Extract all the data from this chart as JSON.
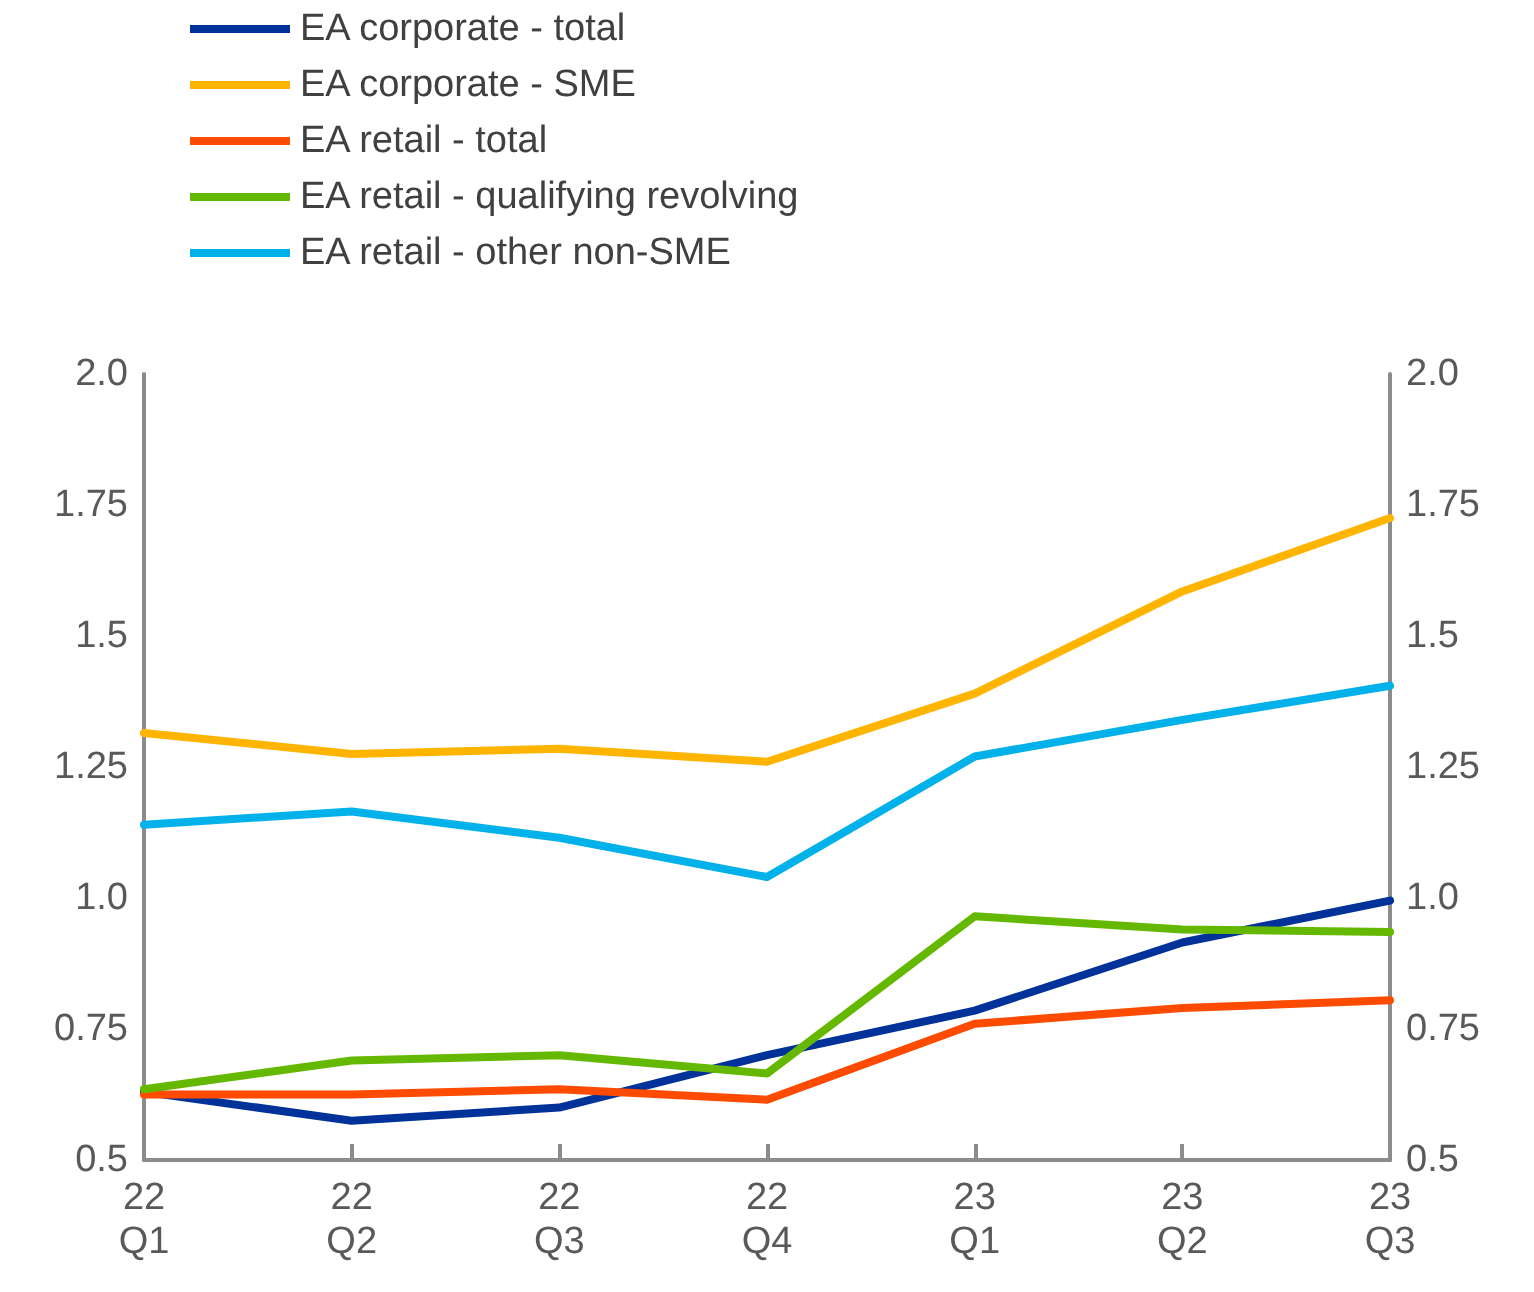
{
  "chart_data": {
    "type": "line",
    "categories": [
      "22\nQ1",
      "22\nQ2",
      "22\nQ3",
      "22\nQ4",
      "23\nQ1",
      "23\nQ2",
      "23\nQ3"
    ],
    "series": [
      {
        "name": "EA corporate - total",
        "color": "#003299",
        "values": [
          0.63,
          0.575,
          0.6,
          0.7,
          0.785,
          0.915,
          0.995
        ]
      },
      {
        "name": "EA corporate - SME",
        "color": "#ffb400",
        "values": [
          1.315,
          1.275,
          1.285,
          1.26,
          1.39,
          1.585,
          1.725
        ]
      },
      {
        "name": "EA retail - total",
        "color": "#ff4b00",
        "values": [
          0.625,
          0.625,
          0.635,
          0.615,
          0.76,
          0.79,
          0.805
        ]
      },
      {
        "name": "EA retail - qualifying revolving",
        "color": "#65b800",
        "values": [
          0.635,
          0.69,
          0.7,
          0.665,
          0.965,
          0.94,
          0.935
        ]
      },
      {
        "name": "EA retail - other non-SME",
        "color": "#00b1ea",
        "values": [
          1.14,
          1.165,
          1.115,
          1.04,
          1.27,
          1.34,
          1.405
        ]
      }
    ],
    "ylim": [
      0.5,
      2.0
    ],
    "yticks": [
      0.5,
      0.75,
      {
        "value": 1,
        "label": "1.0"
      },
      1.25,
      1.5,
      1.75,
      {
        "value": 2,
        "label": "2.0"
      }
    ],
    "y2lim": [
      0.5,
      2.0
    ],
    "y2ticks": [
      0.5,
      0.75,
      {
        "value": 1,
        "label": "1.0"
      },
      1.25,
      1.5,
      1.75,
      {
        "value": 2,
        "label": "2.0"
      }
    ],
    "grid": false,
    "legend": "top left",
    "marker": "none",
    "line_style": "solid"
  }
}
